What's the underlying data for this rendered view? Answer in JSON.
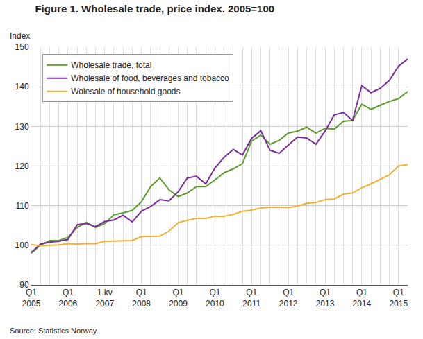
{
  "chart_data": {
    "type": "line",
    "title": "Figure 1. Wholesale trade, price index. 2005=100",
    "y_label": "Index",
    "source": "Source: Statistics Norway.",
    "categories": [
      "Q1\n2005",
      null,
      null,
      null,
      "Q1\n2006",
      null,
      null,
      null,
      "1.kv\n2007",
      null,
      null,
      null,
      "Q1\n2008",
      null,
      null,
      null,
      "Q1\n2009",
      null,
      null,
      null,
      "Q1\n2010",
      null,
      null,
      null,
      "Q1\n2011",
      null,
      null,
      null,
      "Q1\n2012",
      null,
      null,
      null,
      "Q1\n2013",
      null,
      null,
      null,
      "Q1\n2014",
      null,
      null,
      null,
      "Q1\n2015",
      null
    ],
    "series": [
      {
        "name": "Wholesale trade, total",
        "color": "#5b9b2b",
        "values": [
          98,
          100,
          101.2,
          101.2,
          102,
          104.5,
          105.8,
          104.5,
          105.5,
          107.7,
          108.2,
          108.8,
          111,
          114.8,
          117,
          114,
          112.3,
          113.2,
          114.8,
          114.8,
          116.5,
          118.3,
          119.3,
          120.6,
          126.3,
          127.8,
          125.5,
          126.5,
          128.3,
          128.8,
          129.8,
          128.3,
          129.5,
          129.3,
          131.3,
          131.5,
          135.6,
          134.3,
          135.3,
          136.3,
          137,
          138.8
        ]
      },
      {
        "name": "Wholesale of food, beverages and tobacco",
        "color": "#7a2c9c",
        "values": [
          98.2,
          100.3,
          100.8,
          101,
          101.5,
          105.2,
          105.5,
          104.7,
          106,
          106.4,
          107.6,
          105.9,
          108.6,
          109.8,
          111.5,
          111.2,
          113.5,
          117,
          117.4,
          115.5,
          119.5,
          122.2,
          124.2,
          122.8,
          127,
          128.9,
          124,
          123.2,
          125.3,
          127.3,
          127.1,
          125.5,
          128.8,
          132.9,
          133.5,
          131.5,
          140.3,
          138.5,
          139.6,
          141.6,
          145.2,
          147
        ]
      },
      {
        "name": "Wolesale of household goods",
        "color": "#efb233",
        "values": [
          100.2,
          99.9,
          100,
          100.1,
          100.4,
          100.3,
          100.4,
          100.4,
          101,
          101.1,
          101.1,
          101.2,
          102.2,
          102.2,
          102.3,
          103.6,
          105.7,
          106.3,
          106.8,
          106.8,
          107.3,
          107.3,
          107.8,
          108.6,
          108.9,
          109.4,
          109.6,
          109.6,
          109.5,
          109.9,
          110.6,
          110.8,
          111.5,
          111.7,
          112.9,
          113.2,
          114.5,
          115.5,
          116.6,
          117.8,
          120,
          120.4
        ]
      }
    ],
    "ylim": [
      90,
      150
    ],
    "yticks": [
      90,
      100,
      110,
      120,
      130,
      140,
      150
    ],
    "grid": true,
    "legend": "upper left"
  }
}
